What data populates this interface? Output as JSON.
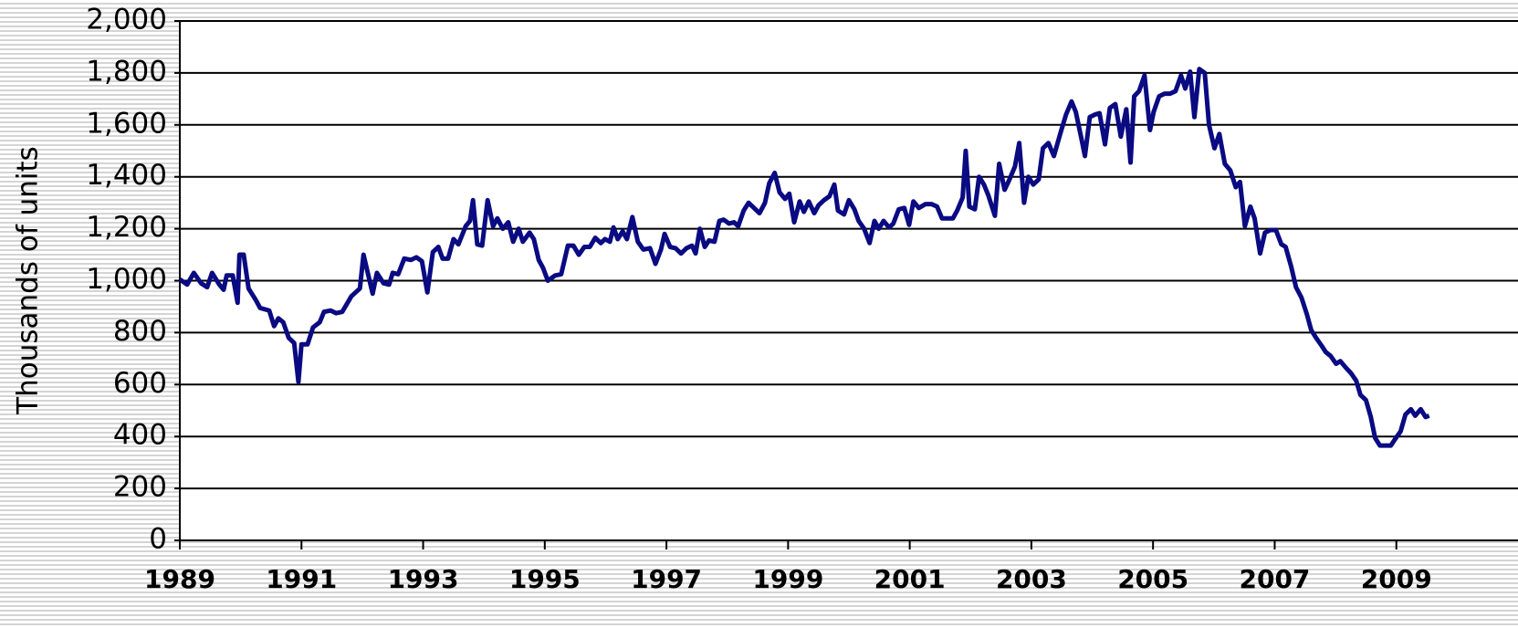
{
  "chart_data": {
    "type": "line",
    "ylabel": "Thousands of units",
    "grid": true,
    "x": [
      1989.0,
      1989.12,
      1989.23,
      1989.35,
      1989.45,
      1989.53,
      1989.65,
      1989.72,
      1989.77,
      1989.87,
      1989.95,
      1989.98,
      1990.05,
      1990.13,
      1990.25,
      1990.32,
      1990.47,
      1990.55,
      1990.62,
      1990.7,
      1990.79,
      1990.88,
      1990.95,
      1991.0,
      1991.1,
      1991.19,
      1991.3,
      1991.37,
      1991.48,
      1991.57,
      1991.67,
      1991.82,
      1991.96,
      1992.02,
      1992.17,
      1992.24,
      1992.35,
      1992.44,
      1992.5,
      1992.59,
      1992.69,
      1992.8,
      1992.89,
      1992.98,
      1993.07,
      1993.16,
      1993.25,
      1993.32,
      1993.41,
      1993.5,
      1993.58,
      1993.7,
      1993.77,
      1993.82,
      1993.89,
      1993.97,
      1994.06,
      1994.15,
      1994.22,
      1994.31,
      1994.4,
      1994.48,
      1994.57,
      1994.64,
      1994.75,
      1994.82,
      1994.9,
      1994.97,
      1995.05,
      1995.17,
      1995.27,
      1995.38,
      1995.47,
      1995.56,
      1995.65,
      1995.74,
      1995.83,
      1995.92,
      1995.99,
      1996.07,
      1996.13,
      1996.2,
      1996.28,
      1996.35,
      1996.44,
      1996.53,
      1996.62,
      1996.73,
      1996.82,
      1996.91,
      1996.97,
      1997.06,
      1997.15,
      1997.24,
      1997.33,
      1997.42,
      1997.48,
      1997.55,
      1997.63,
      1997.7,
      1997.79,
      1997.87,
      1997.94,
      1998.03,
      1998.11,
      1998.18,
      1998.27,
      1998.35,
      1998.44,
      1998.53,
      1998.62,
      1998.69,
      1998.78,
      1998.86,
      1998.95,
      1999.02,
      1999.1,
      1999.19,
      1999.26,
      1999.34,
      1999.43,
      1999.5,
      1999.59,
      1999.68,
      1999.76,
      1999.82,
      1999.92,
      2000.0,
      2000.09,
      2000.16,
      2000.25,
      2000.34,
      2000.42,
      2000.49,
      2000.57,
      2000.66,
      2000.73,
      2000.82,
      2000.91,
      2000.99,
      2001.06,
      2001.15,
      2001.26,
      2001.36,
      2001.45,
      2001.53,
      2001.62,
      2001.71,
      2001.78,
      2001.87,
      2001.92,
      2001.98,
      2002.07,
      2002.14,
      2002.22,
      2002.29,
      2002.4,
      2002.47,
      2002.56,
      2002.64,
      2002.73,
      2002.8,
      2002.88,
      2002.95,
      2003.03,
      2003.12,
      2003.19,
      2003.28,
      2003.37,
      2003.48,
      2003.57,
      2003.66,
      2003.73,
      2003.82,
      2003.88,
      2003.96,
      2004.05,
      2004.12,
      2004.21,
      2004.29,
      2004.38,
      2004.47,
      2004.56,
      2004.63,
      2004.69,
      2004.77,
      2004.86,
      2004.95,
      2005.01,
      2005.1,
      2005.19,
      2005.28,
      2005.37,
      2005.46,
      2005.53,
      2005.61,
      2005.68,
      2005.76,
      2005.85,
      2005.92,
      2006.01,
      2006.09,
      2006.18,
      2006.27,
      2006.36,
      2006.43,
      2006.51,
      2006.6,
      2006.67,
      2006.76,
      2006.84,
      2006.93,
      2007.02,
      2007.11,
      2007.18,
      2007.27,
      2007.35,
      2007.44,
      2007.53,
      2007.6,
      2007.68,
      2007.77,
      2007.84,
      2007.92,
      2008.01,
      2008.08,
      2008.17,
      2008.25,
      2008.34,
      2008.41,
      2008.5,
      2008.58,
      2008.65,
      2008.73,
      2008.82,
      2008.91,
      2008.98,
      2009.07,
      2009.15,
      2009.24,
      2009.31,
      2009.4,
      2009.48,
      2009.54
    ],
    "series": [
      {
        "color": "#0a0a82",
        "values": [
          1005,
          985,
          1030,
          990,
          975,
          1030,
          985,
          965,
          1020,
          1020,
          915,
          1100,
          1100,
          970,
          925,
          895,
          885,
          825,
          855,
          840,
          780,
          760,
          610,
          755,
          755,
          820,
          840,
          880,
          885,
          875,
          880,
          940,
          970,
          1100,
          950,
          1030,
          990,
          985,
          1030,
          1025,
          1085,
          1080,
          1090,
          1075,
          955,
          1110,
          1130,
          1085,
          1085,
          1160,
          1140,
          1210,
          1230,
          1310,
          1140,
          1135,
          1310,
          1210,
          1240,
          1200,
          1225,
          1150,
          1200,
          1150,
          1185,
          1160,
          1080,
          1050,
          1000,
          1020,
          1025,
          1135,
          1135,
          1100,
          1130,
          1130,
          1165,
          1145,
          1160,
          1150,
          1205,
          1160,
          1190,
          1160,
          1245,
          1150,
          1120,
          1125,
          1065,
          1120,
          1180,
          1130,
          1125,
          1105,
          1125,
          1135,
          1105,
          1200,
          1130,
          1155,
          1150,
          1230,
          1235,
          1220,
          1225,
          1210,
          1270,
          1300,
          1280,
          1260,
          1300,
          1375,
          1415,
          1340,
          1315,
          1335,
          1225,
          1305,
          1265,
          1305,
          1260,
          1290,
          1310,
          1325,
          1370,
          1270,
          1255,
          1310,
          1275,
          1230,
          1200,
          1145,
          1230,
          1200,
          1230,
          1205,
          1220,
          1275,
          1280,
          1215,
          1305,
          1280,
          1295,
          1295,
          1285,
          1240,
          1240,
          1240,
          1270,
          1320,
          1500,
          1285,
          1275,
          1400,
          1370,
          1330,
          1250,
          1450,
          1350,
          1390,
          1440,
          1530,
          1300,
          1400,
          1370,
          1390,
          1510,
          1530,
          1480,
          1570,
          1640,
          1690,
          1650,
          1550,
          1480,
          1630,
          1640,
          1645,
          1525,
          1665,
          1680,
          1555,
          1660,
          1455,
          1710,
          1730,
          1790,
          1580,
          1650,
          1710,
          1720,
          1720,
          1730,
          1790,
          1740,
          1805,
          1630,
          1815,
          1800,
          1600,
          1510,
          1565,
          1450,
          1425,
          1360,
          1380,
          1210,
          1285,
          1240,
          1105,
          1185,
          1195,
          1195,
          1140,
          1130,
          1055,
          975,
          935,
          870,
          810,
          780,
          750,
          725,
          710,
          680,
          690,
          665,
          645,
          615,
          560,
          540,
          475,
          395,
          365,
          365,
          365,
          390,
          420,
          485,
          505,
          480,
          505,
          475,
          480
        ]
      }
    ],
    "xlim": [
      1989,
      2011
    ],
    "xticks": [
      1989,
      1991,
      1993,
      1995,
      1997,
      1999,
      2001,
      2003,
      2005,
      2007,
      2009
    ],
    "ylim": [
      0,
      2000
    ],
    "yticks": [
      0,
      200,
      400,
      600,
      800,
      {
        "value": 1000,
        "label": "1,000"
      },
      {
        "value": 1200,
        "label": "1,200"
      },
      {
        "value": 1400,
        "label": "1,400"
      },
      {
        "value": 1600,
        "label": "1,600"
      },
      {
        "value": 1800,
        "label": "1,800"
      },
      {
        "value": 2000,
        "label": "2,000"
      }
    ]
  }
}
